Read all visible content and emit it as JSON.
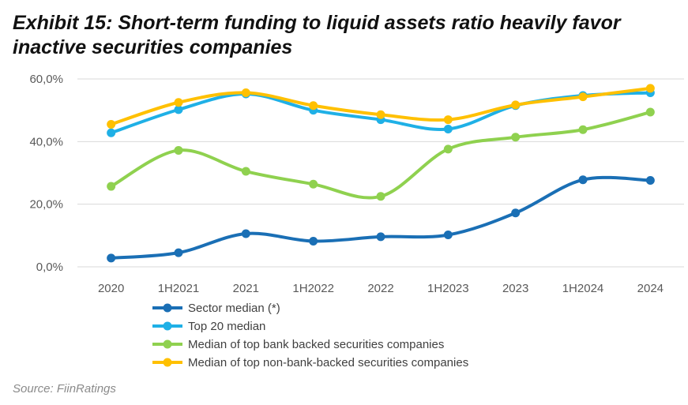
{
  "title_line1": "Exhibit 15: Short-term funding to liquid assets ratio heavily favor",
  "title_line2": "inactive securities companies",
  "source": "Source: FiinRatings",
  "chart_data": {
    "type": "line",
    "categories": [
      "2020",
      "1H2021",
      "2021",
      "1H2022",
      "2022",
      "1H2023",
      "2023",
      "1H2024",
      "2024"
    ],
    "ylim": [
      0,
      60
    ],
    "yticks": [
      0,
      20,
      40,
      60
    ],
    "ytick_labels": [
      "0,0%",
      "20,0%",
      "40,0%",
      "60,0%"
    ],
    "grid": "horizontal",
    "legend_position": "bottom",
    "series": [
      {
        "name": "Sector median (*)",
        "color": "#1a6fb5",
        "values": [
          2.8,
          4.5,
          10.6,
          8.2,
          9.6,
          10.2,
          17.2,
          27.8,
          27.6
        ]
      },
      {
        "name": "Top 20 median",
        "color": "#1fb0e6",
        "values": [
          42.8,
          50.2,
          55.2,
          50.0,
          47.0,
          44.0,
          51.5,
          54.7,
          55.6
        ]
      },
      {
        "name": "Median of top bank backed securities companies",
        "color": "#8fd14f",
        "values": [
          25.7,
          37.2,
          30.5,
          26.4,
          22.5,
          37.6,
          41.4,
          43.8,
          49.4
        ]
      },
      {
        "name": "Median of top non-bank-backed securities companies",
        "color": "#ffc000",
        "values": [
          45.5,
          52.5,
          55.6,
          51.5,
          48.6,
          47.0,
          51.7,
          54.3,
          57.0
        ]
      }
    ]
  }
}
